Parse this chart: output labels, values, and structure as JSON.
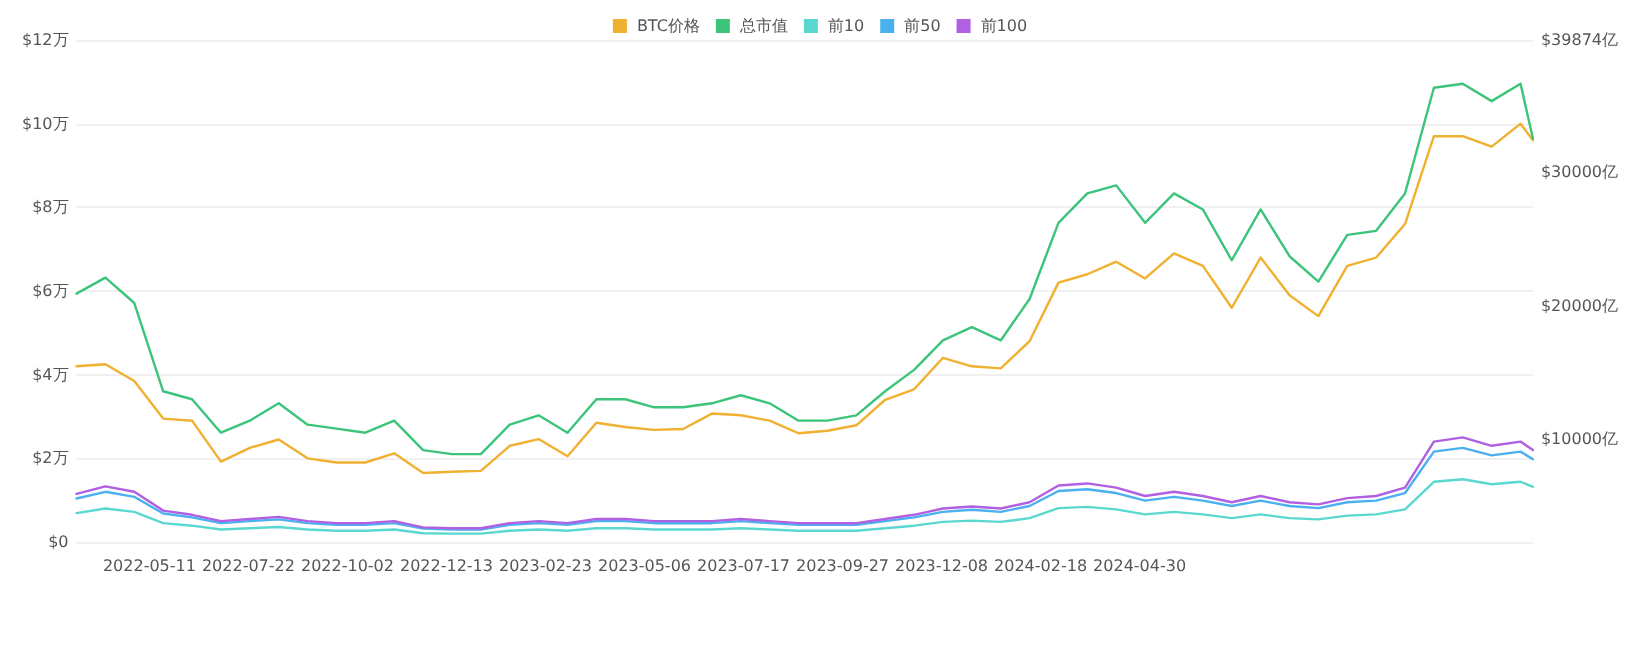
{
  "chart_data": {
    "type": "line",
    "legend": "top",
    "grid": "y",
    "marker": "none",
    "line_style": "solid",
    "x": [
      "2022-03-19",
      "2022-04-09",
      "2022-04-30",
      "2022-05-21",
      "2022-06-11",
      "2022-07-02",
      "2022-07-23",
      "2022-08-13",
      "2022-09-03",
      "2022-09-24",
      "2022-10-15",
      "2022-11-05",
      "2022-11-26",
      "2022-12-17",
      "2023-01-07",
      "2023-01-28",
      "2023-02-18",
      "2023-03-11",
      "2023-04-01",
      "2023-04-22",
      "2023-05-13",
      "2023-06-03",
      "2023-06-24",
      "2023-07-15",
      "2023-08-05",
      "2023-08-26",
      "2023-09-16",
      "2023-10-07",
      "2023-10-28",
      "2023-11-18",
      "2023-12-09",
      "2023-12-30",
      "2024-01-20",
      "2024-02-10",
      "2024-03-02",
      "2024-03-23",
      "2024-04-13",
      "2024-05-04",
      "2024-05-25",
      "2024-06-15",
      "2024-07-06",
      "2024-07-27",
      "2024-08-17",
      "2024-09-07",
      "2024-09-28",
      "2024-10-19",
      "2024-11-09",
      "2024-11-30",
      "2024-12-21",
      "2025-01-11",
      "2025-02-01",
      "2025-02-10"
    ],
    "xlim": [
      "2022-03-19",
      "2025-02-10"
    ],
    "xticks": [
      "2022-05-11",
      "2022-07-22",
      "2022-10-02",
      "2022-12-13",
      "2023-02-23",
      "2023-05-06",
      "2023-07-17",
      "2023-09-27",
      "2023-12-08",
      "2024-02-18",
      "2024-04-30"
    ],
    "ylim": [
      0,
      12
    ],
    "yticks": [
      {
        "value": 0,
        "label": "$0"
      },
      {
        "value": 2,
        "label": "$2万"
      },
      {
        "value": 4,
        "label": "$4万"
      },
      {
        "value": 6,
        "label": "$6万"
      },
      {
        "value": 8,
        "label": "$8万"
      },
      {
        "value": 10,
        "label": "$10万"
      },
      {
        "value": 12,
        "label": "$12万"
      }
    ],
    "y2lim": [
      2324,
      39874
    ],
    "y2ticks": [
      {
        "value": 10000,
        "label": "$10000亿"
      },
      {
        "value": 20000,
        "label": "$20000亿"
      },
      {
        "value": 30000,
        "label": "$30000亿"
      },
      {
        "value": 39874,
        "label": "$39874亿"
      }
    ],
    "series": [
      {
        "name": "BTC价格",
        "color": "#f0b030",
        "values": [
          4.2,
          4.25,
          3.85,
          2.95,
          2.9,
          1.92,
          2.25,
          2.45,
          2.0,
          1.9,
          1.9,
          2.12,
          1.65,
          1.68,
          1.7,
          2.3,
          2.46,
          2.05,
          2.85,
          2.75,
          2.68,
          2.7,
          3.07,
          3.03,
          2.9,
          2.6,
          2.66,
          2.79,
          3.4,
          3.65,
          4.4,
          4.2,
          4.15,
          4.8,
          6.2,
          6.4,
          6.7,
          6.3,
          6.9,
          6.6,
          5.6,
          6.8,
          5.9,
          5.4,
          6.6,
          6.8,
          7.6,
          9.7,
          9.7,
          9.45,
          10.0,
          9.6
        ]
      },
      {
        "name": "总市值",
        "color": "#3cc47a",
        "axis": "y2",
        "values": [
          20900,
          22100,
          20200,
          13600,
          13000,
          10500,
          11400,
          12700,
          11100,
          10800,
          10500,
          11400,
          9200,
          8900,
          8900,
          11100,
          11800,
          10500,
          13000,
          13000,
          12400,
          12400,
          12700,
          13300,
          12700,
          11400,
          11400,
          11800,
          13600,
          15200,
          17400,
          18400,
          17400,
          20500,
          26200,
          28400,
          29000,
          26200,
          28400,
          27200,
          23400,
          27200,
          23700,
          21800,
          25300,
          25600,
          28400,
          36300,
          36600,
          35300,
          36600,
          32500
        ]
      },
      {
        "name": "前10",
        "color": "#5ad8d0",
        "values": [
          0.69,
          0.8,
          0.72,
          0.45,
          0.39,
          0.3,
          0.33,
          0.36,
          0.3,
          0.27,
          0.27,
          0.3,
          0.21,
          0.2,
          0.2,
          0.27,
          0.3,
          0.27,
          0.33,
          0.33,
          0.3,
          0.3,
          0.3,
          0.33,
          0.3,
          0.27,
          0.27,
          0.27,
          0.33,
          0.39,
          0.48,
          0.51,
          0.48,
          0.57,
          0.81,
          0.84,
          0.78,
          0.66,
          0.72,
          0.66,
          0.57,
          0.66,
          0.57,
          0.54,
          0.63,
          0.66,
          0.78,
          1.44,
          1.5,
          1.38,
          1.44,
          1.32
        ]
      },
      {
        "name": "前50",
        "color": "#4ab0f0",
        "values": [
          1.04,
          1.2,
          1.08,
          0.68,
          0.59,
          0.45,
          0.5,
          0.54,
          0.45,
          0.41,
          0.41,
          0.45,
          0.32,
          0.3,
          0.3,
          0.41,
          0.45,
          0.41,
          0.5,
          0.5,
          0.45,
          0.45,
          0.45,
          0.5,
          0.45,
          0.41,
          0.41,
          0.41,
          0.5,
          0.59,
          0.72,
          0.77,
          0.72,
          0.86,
          1.22,
          1.26,
          1.17,
          0.99,
          1.08,
          0.99,
          0.86,
          0.99,
          0.86,
          0.81,
          0.95,
          0.99,
          1.17,
          2.16,
          2.25,
          2.07,
          2.16,
          1.98
        ]
      },
      {
        "name": "前100",
        "color": "#b060e0",
        "values": [
          1.15,
          1.33,
          1.2,
          0.75,
          0.65,
          0.5,
          0.55,
          0.6,
          0.5,
          0.45,
          0.45,
          0.5,
          0.35,
          0.33,
          0.33,
          0.45,
          0.5,
          0.45,
          0.55,
          0.55,
          0.5,
          0.5,
          0.5,
          0.55,
          0.5,
          0.45,
          0.45,
          0.45,
          0.55,
          0.65,
          0.8,
          0.85,
          0.8,
          0.95,
          1.35,
          1.4,
          1.3,
          1.1,
          1.2,
          1.1,
          0.95,
          1.1,
          0.95,
          0.9,
          1.05,
          1.1,
          1.3,
          2.4,
          2.5,
          2.3,
          2.4,
          2.2
        ]
      }
    ]
  }
}
